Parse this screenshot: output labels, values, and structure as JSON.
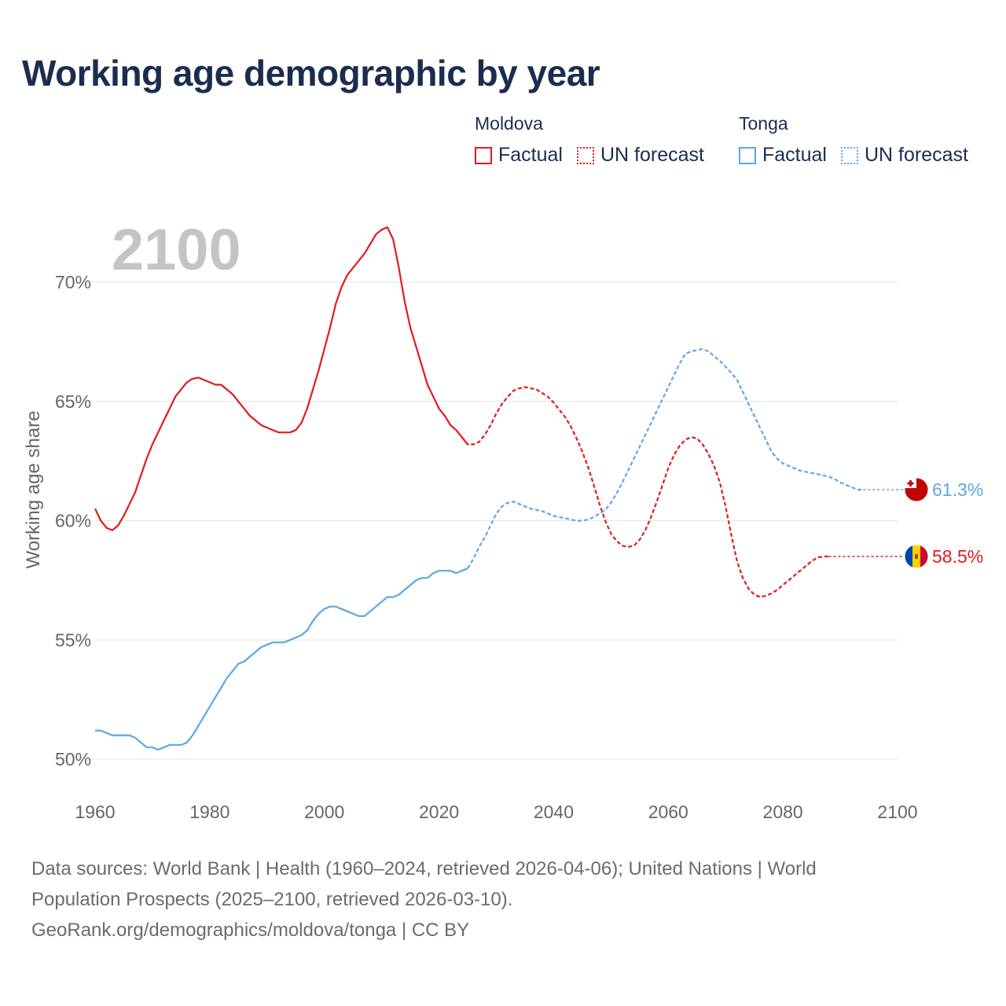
{
  "title": "Working age demographic by year",
  "legend": {
    "groups": [
      {
        "name": "Moldova",
        "color": "#e31a1c",
        "factual": "Factual",
        "forecast": "UN forecast"
      },
      {
        "name": "Tonga",
        "color": "#5ea6e6",
        "factual": "Factual",
        "forecast": "UN forecast"
      }
    ]
  },
  "footer": {
    "line1": "Data sources: World Bank | Health (1960–2024, retrieved 2026-04-06); United Nations | World",
    "line2": "Population Prospects (2025–2100, retrieved 2026-03-10).",
    "line3": "GeoRank.org/demographics/moldova/tonga | CC BY"
  },
  "chart_data": {
    "type": "line",
    "title": "Working age demographic by year",
    "year_watermark": "2100",
    "xlabel": "",
    "ylabel": "Working age share",
    "xlim": [
      1960,
      2100
    ],
    "ylim": [
      49.5,
      72.5
    ],
    "x_ticks": [
      1960,
      1980,
      2000,
      2020,
      2040,
      2060,
      2080,
      2100
    ],
    "y_ticks": [
      50,
      55,
      60,
      65,
      70
    ],
    "y_tick_labels": [
      "50%",
      "55%",
      "60%",
      "65%",
      "70%"
    ],
    "grid": true,
    "forecast_start_year": 2025,
    "series": [
      {
        "name": "Moldova",
        "color": "#e31a1c",
        "flag_icon": "moldova-flag-icon",
        "end_label": "58.5%",
        "points": [
          [
            1960,
            60.5
          ],
          [
            1961,
            60.0
          ],
          [
            1962,
            59.7
          ],
          [
            1963,
            59.6
          ],
          [
            1964,
            59.8
          ],
          [
            1965,
            60.2
          ],
          [
            1966,
            60.7
          ],
          [
            1967,
            61.2
          ],
          [
            1968,
            61.9
          ],
          [
            1969,
            62.6
          ],
          [
            1970,
            63.2
          ],
          [
            1971,
            63.7
          ],
          [
            1972,
            64.2
          ],
          [
            1973,
            64.7
          ],
          [
            1974,
            65.2
          ],
          [
            1975,
            65.5
          ],
          [
            1976,
            65.8
          ],
          [
            1977,
            65.95
          ],
          [
            1978,
            66.0
          ],
          [
            1979,
            65.9
          ],
          [
            1980,
            65.8
          ],
          [
            1981,
            65.7
          ],
          [
            1982,
            65.7
          ],
          [
            1983,
            65.5
          ],
          [
            1984,
            65.3
          ],
          [
            1985,
            65.0
          ],
          [
            1986,
            64.7
          ],
          [
            1987,
            64.4
          ],
          [
            1988,
            64.2
          ],
          [
            1989,
            64.0
          ],
          [
            1990,
            63.9
          ],
          [
            1991,
            63.8
          ],
          [
            1992,
            63.7
          ],
          [
            1993,
            63.7
          ],
          [
            1994,
            63.7
          ],
          [
            1995,
            63.8
          ],
          [
            1996,
            64.1
          ],
          [
            1997,
            64.7
          ],
          [
            1998,
            65.5
          ],
          [
            1999,
            66.3
          ],
          [
            2000,
            67.2
          ],
          [
            2001,
            68.1
          ],
          [
            2002,
            69.1
          ],
          [
            2003,
            69.8
          ],
          [
            2004,
            70.3
          ],
          [
            2005,
            70.6
          ],
          [
            2006,
            70.9
          ],
          [
            2007,
            71.2
          ],
          [
            2008,
            71.6
          ],
          [
            2009,
            72.0
          ],
          [
            2010,
            72.2
          ],
          [
            2011,
            72.3
          ],
          [
            2012,
            71.8
          ],
          [
            2013,
            70.6
          ],
          [
            2014,
            69.2
          ],
          [
            2015,
            68.1
          ],
          [
            2016,
            67.3
          ],
          [
            2017,
            66.5
          ],
          [
            2018,
            65.7
          ],
          [
            2019,
            65.2
          ],
          [
            2020,
            64.7
          ],
          [
            2021,
            64.4
          ],
          [
            2022,
            64.0
          ],
          [
            2023,
            63.8
          ],
          [
            2024,
            63.5
          ],
          [
            2025,
            63.2
          ],
          [
            2026,
            63.2
          ],
          [
            2027,
            63.3
          ],
          [
            2028,
            63.6
          ],
          [
            2029,
            64.0
          ],
          [
            2030,
            64.5
          ],
          [
            2031,
            64.9
          ],
          [
            2032,
            65.2
          ],
          [
            2033,
            65.45
          ],
          [
            2034,
            65.55
          ],
          [
            2035,
            65.6
          ],
          [
            2036,
            65.55
          ],
          [
            2037,
            65.5
          ],
          [
            2038,
            65.35
          ],
          [
            2039,
            65.2
          ],
          [
            2040,
            64.95
          ],
          [
            2041,
            64.65
          ],
          [
            2042,
            64.35
          ],
          [
            2043,
            63.95
          ],
          [
            2044,
            63.45
          ],
          [
            2045,
            62.9
          ],
          [
            2046,
            62.25
          ],
          [
            2047,
            61.5
          ],
          [
            2048,
            60.7
          ],
          [
            2049,
            60.0
          ],
          [
            2050,
            59.45
          ],
          [
            2051,
            59.15
          ],
          [
            2052,
            58.95
          ],
          [
            2053,
            58.9
          ],
          [
            2054,
            58.95
          ],
          [
            2055,
            59.2
          ],
          [
            2056,
            59.6
          ],
          [
            2057,
            60.15
          ],
          [
            2058,
            60.8
          ],
          [
            2059,
            61.5
          ],
          [
            2060,
            62.2
          ],
          [
            2061,
            62.75
          ],
          [
            2062,
            63.15
          ],
          [
            2063,
            63.4
          ],
          [
            2064,
            63.5
          ],
          [
            2065,
            63.45
          ],
          [
            2066,
            63.2
          ],
          [
            2067,
            62.8
          ],
          [
            2068,
            62.3
          ],
          [
            2069,
            61.6
          ],
          [
            2070,
            60.6
          ],
          [
            2071,
            59.4
          ],
          [
            2072,
            58.3
          ],
          [
            2073,
            57.6
          ],
          [
            2074,
            57.15
          ],
          [
            2075,
            56.9
          ],
          [
            2076,
            56.8
          ],
          [
            2077,
            56.85
          ],
          [
            2078,
            56.95
          ],
          [
            2079,
            57.1
          ],
          [
            2080,
            57.3
          ],
          [
            2081,
            57.5
          ],
          [
            2082,
            57.7
          ],
          [
            2083,
            57.9
          ],
          [
            2084,
            58.1
          ],
          [
            2085,
            58.3
          ],
          [
            2086,
            58.45
          ],
          [
            2087,
            58.5
          ],
          [
            2088,
            58.5
          ]
        ]
      },
      {
        "name": "Tonga",
        "color": "#5ea6e6",
        "flag_icon": "tonga-flag-icon",
        "end_label": "61.3%",
        "points": [
          [
            1960,
            51.2
          ],
          [
            1961,
            51.2
          ],
          [
            1962,
            51.1
          ],
          [
            1963,
            51.0
          ],
          [
            1964,
            51.0
          ],
          [
            1965,
            51.0
          ],
          [
            1966,
            51.0
          ],
          [
            1967,
            50.9
          ],
          [
            1968,
            50.7
          ],
          [
            1969,
            50.5
          ],
          [
            1970,
            50.5
          ],
          [
            1971,
            50.4
          ],
          [
            1972,
            50.5
          ],
          [
            1973,
            50.6
          ],
          [
            1974,
            50.6
          ],
          [
            1975,
            50.6
          ],
          [
            1976,
            50.7
          ],
          [
            1977,
            51.0
          ],
          [
            1978,
            51.4
          ],
          [
            1979,
            51.8
          ],
          [
            1980,
            52.2
          ],
          [
            1981,
            52.6
          ],
          [
            1982,
            53.0
          ],
          [
            1983,
            53.4
          ],
          [
            1984,
            53.7
          ],
          [
            1985,
            54.0
          ],
          [
            1986,
            54.1
          ],
          [
            1987,
            54.3
          ],
          [
            1988,
            54.5
          ],
          [
            1989,
            54.7
          ],
          [
            1990,
            54.8
          ],
          [
            1991,
            54.9
          ],
          [
            1992,
            54.9
          ],
          [
            1993,
            54.9
          ],
          [
            1994,
            55.0
          ],
          [
            1995,
            55.1
          ],
          [
            1996,
            55.2
          ],
          [
            1997,
            55.4
          ],
          [
            1998,
            55.8
          ],
          [
            1999,
            56.1
          ],
          [
            2000,
            56.3
          ],
          [
            2001,
            56.4
          ],
          [
            2002,
            56.4
          ],
          [
            2003,
            56.3
          ],
          [
            2004,
            56.2
          ],
          [
            2005,
            56.1
          ],
          [
            2006,
            56.0
          ],
          [
            2007,
            56.0
          ],
          [
            2008,
            56.2
          ],
          [
            2009,
            56.4
          ],
          [
            2010,
            56.6
          ],
          [
            2011,
            56.8
          ],
          [
            2012,
            56.8
          ],
          [
            2013,
            56.9
          ],
          [
            2014,
            57.1
          ],
          [
            2015,
            57.3
          ],
          [
            2016,
            57.5
          ],
          [
            2017,
            57.6
          ],
          [
            2018,
            57.6
          ],
          [
            2019,
            57.8
          ],
          [
            2020,
            57.9
          ],
          [
            2021,
            57.9
          ],
          [
            2022,
            57.9
          ],
          [
            2023,
            57.8
          ],
          [
            2024,
            57.9
          ],
          [
            2025,
            58.0
          ],
          [
            2026,
            58.4
          ],
          [
            2027,
            58.9
          ],
          [
            2028,
            59.3
          ],
          [
            2029,
            59.8
          ],
          [
            2030,
            60.3
          ],
          [
            2031,
            60.6
          ],
          [
            2032,
            60.75
          ],
          [
            2033,
            60.8
          ],
          [
            2034,
            60.7
          ],
          [
            2035,
            60.6
          ],
          [
            2036,
            60.5
          ],
          [
            2037,
            60.45
          ],
          [
            2038,
            60.4
          ],
          [
            2039,
            60.3
          ],
          [
            2040,
            60.2
          ],
          [
            2041,
            60.15
          ],
          [
            2042,
            60.1
          ],
          [
            2043,
            60.05
          ],
          [
            2044,
            60.0
          ],
          [
            2045,
            60.0
          ],
          [
            2046,
            60.05
          ],
          [
            2047,
            60.15
          ],
          [
            2048,
            60.3
          ],
          [
            2049,
            60.45
          ],
          [
            2050,
            60.75
          ],
          [
            2051,
            61.15
          ],
          [
            2052,
            61.6
          ],
          [
            2053,
            62.1
          ],
          [
            2054,
            62.6
          ],
          [
            2055,
            63.1
          ],
          [
            2056,
            63.6
          ],
          [
            2057,
            64.1
          ],
          [
            2058,
            64.6
          ],
          [
            2059,
            65.1
          ],
          [
            2060,
            65.6
          ],
          [
            2061,
            66.1
          ],
          [
            2062,
            66.6
          ],
          [
            2063,
            67.0
          ],
          [
            2064,
            67.1
          ],
          [
            2065,
            67.15
          ],
          [
            2066,
            67.2
          ],
          [
            2067,
            67.1
          ],
          [
            2068,
            66.9
          ],
          [
            2069,
            66.7
          ],
          [
            2070,
            66.45
          ],
          [
            2071,
            66.2
          ],
          [
            2072,
            65.9
          ],
          [
            2073,
            65.4
          ],
          [
            2074,
            64.9
          ],
          [
            2075,
            64.4
          ],
          [
            2076,
            63.9
          ],
          [
            2077,
            63.4
          ],
          [
            2078,
            62.9
          ],
          [
            2079,
            62.6
          ],
          [
            2080,
            62.4
          ],
          [
            2081,
            62.3
          ],
          [
            2082,
            62.2
          ],
          [
            2083,
            62.1
          ],
          [
            2084,
            62.05
          ],
          [
            2085,
            62.0
          ],
          [
            2086,
            61.95
          ],
          [
            2087,
            61.9
          ],
          [
            2088,
            61.85
          ],
          [
            2089,
            61.75
          ],
          [
            2090,
            61.6
          ],
          [
            2091,
            61.5
          ],
          [
            2092,
            61.4
          ],
          [
            2093,
            61.3
          ],
          [
            2094,
            61.3
          ]
        ]
      }
    ]
  }
}
